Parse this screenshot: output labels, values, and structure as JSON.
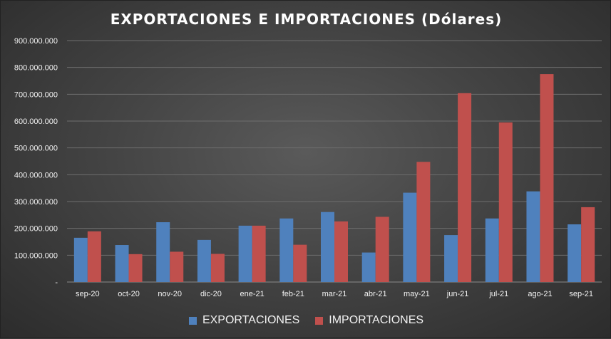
{
  "chart_data": {
    "type": "bar",
    "title": "EXPORTACIONES E IMPORTACIONES (Dólares)",
    "categories": [
      "sep-20",
      "oct-20",
      "nov-20",
      "dic-20",
      "ene-21",
      "feb-21",
      "mar-21",
      "abr-21",
      "may-21",
      "jun-21",
      "jul-21",
      "ago-21",
      "sep-21"
    ],
    "series": [
      {
        "name": "EXPORTACIONES",
        "color": "#4f81bd",
        "values": [
          165000000,
          138000000,
          223000000,
          157000000,
          210000000,
          237000000,
          261000000,
          110000000,
          333000000,
          175000000,
          237000000,
          338000000,
          215000000
        ]
      },
      {
        "name": "IMPORTACIONES",
        "color": "#c0504d",
        "values": [
          189000000,
          104000000,
          113000000,
          105000000,
          210000000,
          139000000,
          226000000,
          243000000,
          448000000,
          704000000,
          595000000,
          775000000,
          279000000
        ]
      }
    ],
    "ylim": [
      0,
      900000000
    ],
    "yticks": [
      "-",
      "100.000.000",
      "200.000.000",
      "300.000.000",
      "400.000.000",
      "500.000.000",
      "600.000.000",
      "700.000.000",
      "800.000.000",
      "900.000.000"
    ],
    "grid": true,
    "legend_position": "bottom"
  }
}
